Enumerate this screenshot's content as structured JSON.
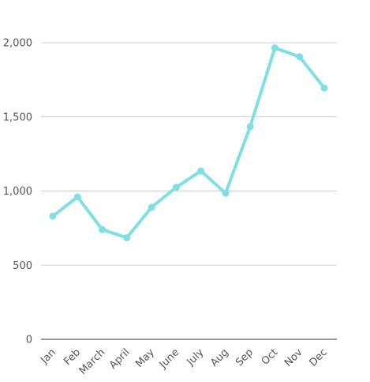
{
  "chart_data": {
    "type": "line",
    "categories": [
      "Jan",
      "Feb",
      "March",
      "April",
      "May",
      "June",
      "July",
      "Aug",
      "Sep",
      "Oct",
      "Nov",
      "Dec"
    ],
    "series": [
      {
        "values": [
          830,
          960,
          740,
          685,
          890,
          1025,
          1135,
          985,
          1435,
          1965,
          1905,
          1695
        ],
        "color": "#7fe0e3"
      }
    ],
    "yticks": [
      "0",
      "500",
      "1,000",
      "1,500",
      "2,000"
    ],
    "ytick_values": [
      0,
      500,
      1000,
      1500,
      2000
    ],
    "ylim": [
      0,
      2000
    ],
    "grid": true,
    "legend": "none"
  }
}
